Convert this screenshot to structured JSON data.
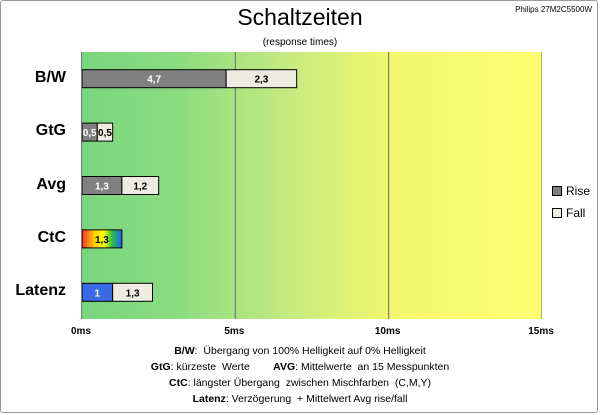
{
  "model": "Philips 27M2C5500W",
  "chart_data": {
    "type": "bar",
    "orientation": "horizontal",
    "stacked": true,
    "title": "Schaltzeiten",
    "subtitle": "(response times)",
    "categories": [
      "B/W",
      "GtG",
      "Avg",
      "CtC",
      "Latenz"
    ],
    "x_ticks": [
      "0ms",
      "5ms",
      "10ms",
      "15ms"
    ],
    "xlim": [
      0,
      15
    ],
    "series": [
      {
        "name": "Rise",
        "values": [
          4.7,
          0.5,
          1.3,
          1.3,
          1
        ],
        "labels": [
          "4,7",
          "0,5",
          "1,3",
          "1,3",
          "1"
        ],
        "color": "#808080"
      },
      {
        "name": "Fall",
        "values": [
          2.3,
          0.5,
          1.2,
          null,
          1.3
        ],
        "labels": [
          "2,3",
          "0,5",
          "1,2",
          "",
          "1,3"
        ],
        "color": "#eeece1"
      }
    ],
    "special_colors": {
      "CtC": "rainbow",
      "Latenz_rise": "#3a6ae8"
    },
    "legend": "right",
    "grid": "vertical"
  },
  "notes": [
    {
      "parts": [
        {
          "b": "B/W"
        },
        {
          "t": ":  Übergang von 100% Helligkeit auf 0% Helligkeit"
        }
      ]
    },
    {
      "parts": [
        {
          "b": "GtG"
        },
        {
          "t": ": kürzeste  Werte        "
        },
        {
          "b": "AVG"
        },
        {
          "t": ": Mittelwerte  an 15 Messpunkten"
        }
      ]
    },
    {
      "parts": [
        {
          "b": "CtC"
        },
        {
          "t": ": längster Übergang  zwischen Mischfarben  (C,M,Y)"
        }
      ]
    },
    {
      "parts": [
        {
          "b": "Latenz"
        },
        {
          "t": ": Verzögerung  + Mittelwert Avg rise/fall"
        }
      ]
    }
  ]
}
